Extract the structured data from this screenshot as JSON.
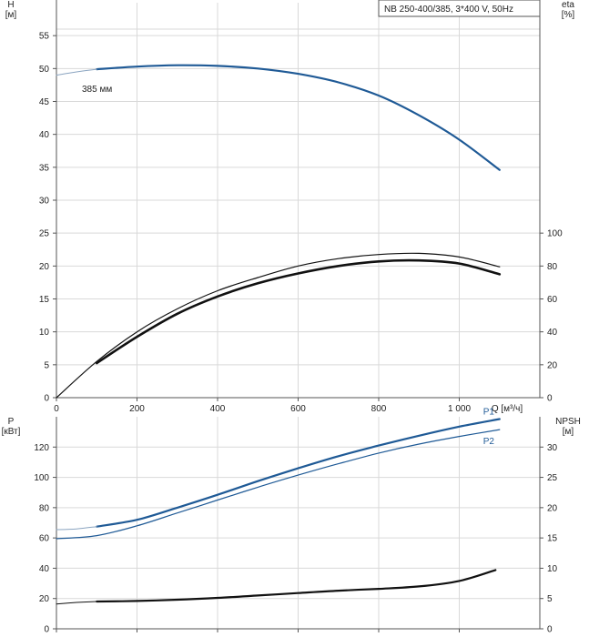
{
  "title_box": "NB 250-400/385, 3*400 V, 50Hz",
  "colors": {
    "blue": "#1f5a96",
    "black": "#111111",
    "thin": "#8aa4c0"
  },
  "chart_data": [
    {
      "type": "line",
      "panel": "top",
      "xlabel": "Q [м³/ч]",
      "ylabel_left": [
        "H",
        "[м]"
      ],
      "ylabel_right": [
        "eta",
        "[%]"
      ],
      "xlim": [
        0,
        1200
      ],
      "x_ticks": [
        0,
        200,
        400,
        600,
        800,
        1000
      ],
      "x_tick_labels": [
        "0",
        "200",
        "400",
        "600",
        "800",
        "1 000"
      ],
      "ylim_left": [
        0,
        60
      ],
      "y_ticks_left": [
        0,
        5,
        10,
        15,
        20,
        25,
        30,
        35,
        40,
        45,
        50,
        55
      ],
      "ylim_right": [
        0,
        240
      ],
      "y_ticks_right": [
        0,
        20,
        40,
        60,
        80,
        100
      ],
      "grid": true,
      "annotation": "385 мм",
      "series": [
        {
          "axis": "left",
          "color": "blue",
          "width": 2.2,
          "x": [
            100,
            200,
            300,
            400,
            500,
            600,
            700,
            800,
            900,
            1000,
            1100
          ],
          "y": [
            49.9,
            50.3,
            50.5,
            50.4,
            50.0,
            49.2,
            47.9,
            45.9,
            42.9,
            39.2,
            34.6
          ]
        },
        {
          "axis": "left",
          "color": "thin",
          "width": 1,
          "x": [
            0,
            50,
            100
          ],
          "y": [
            49.0,
            49.5,
            49.9
          ]
        },
        {
          "axis": "right",
          "color": "black",
          "width": 1.2,
          "x": [
            0,
            100,
            200,
            300,
            400,
            500,
            600,
            700,
            800,
            900,
            1000,
            1100
          ],
          "y": [
            0,
            22,
            40,
            54,
            65,
            73,
            80,
            84.5,
            87,
            87.7,
            85.5,
            79.5
          ]
        },
        {
          "axis": "right",
          "color": "black",
          "width": 2.6,
          "x": [
            100,
            200,
            300,
            400,
            500,
            600,
            700,
            800,
            900,
            1000,
            1100
          ],
          "y": [
            21,
            37,
            51,
            61.5,
            69.5,
            75.5,
            80,
            82.8,
            83.4,
            81.5,
            75
          ]
        }
      ]
    },
    {
      "type": "line",
      "panel": "bottom",
      "ylabel_left": [
        "P",
        "[кВт]"
      ],
      "ylabel_right": [
        "NPSH",
        "[м]"
      ],
      "xlim": [
        0,
        1200
      ],
      "ylim_left": [
        0,
        140
      ],
      "y_ticks_left": [
        0,
        20,
        40,
        60,
        80,
        100,
        120
      ],
      "ylim_right": [
        0,
        35
      ],
      "y_ticks_right": [
        0,
        5,
        10,
        15,
        20,
        25,
        30
      ],
      "grid": true,
      "series": [
        {
          "name": "P1",
          "axis": "left",
          "color": "blue",
          "width": 2.2,
          "x": [
            100,
            200,
            300,
            400,
            500,
            600,
            700,
            800,
            900,
            1000,
            1100
          ],
          "y": [
            67.5,
            72,
            80,
            88.5,
            97.5,
            106,
            114,
            121,
            127.5,
            133.5,
            138.5
          ]
        },
        {
          "axis": "left",
          "color": "thin",
          "width": 1,
          "x": [
            0,
            50,
            100
          ],
          "y": [
            65.5,
            66,
            67.5
          ]
        },
        {
          "name": "P2",
          "axis": "left",
          "color": "blue",
          "width": 1.2,
          "x": [
            0,
            100,
            200,
            300,
            400,
            500,
            600,
            700,
            800,
            900,
            1000,
            1100
          ],
          "y": [
            59.5,
            61.5,
            68,
            76.5,
            85,
            93.5,
            101.5,
            109,
            116,
            122,
            127,
            131.5
          ]
        },
        {
          "axis": "right",
          "color": "black",
          "width": 2.2,
          "x": [
            100,
            200,
            300,
            400,
            500,
            600,
            700,
            800,
            900,
            1000,
            1090
          ],
          "y": [
            4.5,
            4.6,
            4.8,
            5.1,
            5.5,
            5.9,
            6.3,
            6.6,
            7.0,
            7.9,
            9.7
          ]
        },
        {
          "axis": "right",
          "color": "black",
          "width": 1,
          "x": [
            0,
            50,
            100
          ],
          "y": [
            4.1,
            4.35,
            4.5
          ]
        }
      ]
    }
  ]
}
